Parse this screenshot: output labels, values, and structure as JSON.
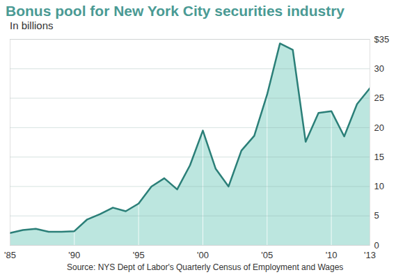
{
  "chart_data": {
    "type": "area",
    "title": "Bonus pool for New York City securities industry",
    "subtitle": "In billions",
    "source": "Source:  NYS Dept of Labor's Quarterly Census of Employment and Wages",
    "x": [
      1985,
      1986,
      1987,
      1988,
      1989,
      1990,
      1991,
      1992,
      1993,
      1994,
      1995,
      1996,
      1997,
      1998,
      1999,
      2000,
      2001,
      2002,
      2003,
      2004,
      2005,
      2006,
      2007,
      2008,
      2009,
      2010,
      2011,
      2012,
      2013
    ],
    "values": [
      2.1,
      2.6,
      2.8,
      2.3,
      2.3,
      2.4,
      4.4,
      5.3,
      6.4,
      5.8,
      7.1,
      10.0,
      11.4,
      9.5,
      13.6,
      19.5,
      13.0,
      10.0,
      16.1,
      18.6,
      25.6,
      34.3,
      33.2,
      17.6,
      22.5,
      22.8,
      18.5,
      24.0,
      26.7
    ],
    "color": "#2b7f78",
    "xlim": [
      1985,
      2013
    ],
    "xticks": [
      {
        "value": 1985,
        "label": "'85"
      },
      {
        "value": 1990,
        "label": "'90"
      },
      {
        "value": 1995,
        "label": "'95"
      },
      {
        "value": 2000,
        "label": "'00"
      },
      {
        "value": 2005,
        "label": "'05"
      },
      {
        "value": 2010,
        "label": "'10"
      },
      {
        "value": 2013,
        "label": "'13"
      }
    ],
    "ylim": [
      0,
      35
    ],
    "yticks": [
      0,
      5,
      10,
      15,
      20,
      25,
      30,
      {
        "value": 35,
        "label": "$35"
      }
    ],
    "grid": true
  }
}
